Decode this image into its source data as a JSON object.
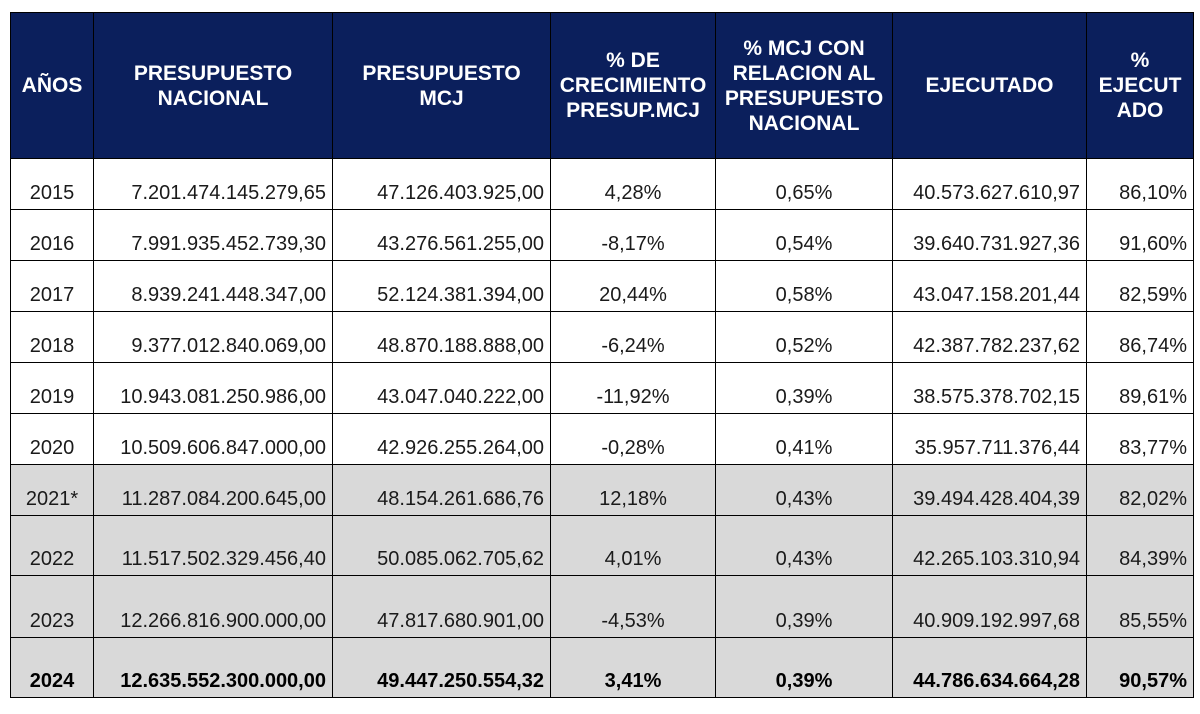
{
  "table": {
    "headers": [
      "AÑOS",
      "PRESUPUESTO\nNACIONAL",
      "PRESUPUESTO\nMCJ",
      "% DE\nCRECIMIENTO\nPRESUP.MCJ",
      "%   MCJ CON\nRELACION AL\nPRESUPUESTO\nNACIONAL",
      "EJECUTADO",
      "%\nEJECUT\nADO"
    ],
    "rows": [
      {
        "year": "2015",
        "nacional": "7.201.474.145.279,65",
        "mcj": "47.126.403.925,00",
        "crecimiento": "4,28%",
        "relacion": "0,65%",
        "ejecutado": "40.573.627.610,97",
        "pct_ejecutado": "86,10%",
        "highlight": "white",
        "bold": false
      },
      {
        "year": "2016",
        "nacional": "7.991.935.452.739,30",
        "mcj": "43.276.561.255,00",
        "crecimiento": "-8,17%",
        "relacion": "0,54%",
        "ejecutado": "39.640.731.927,36",
        "pct_ejecutado": "91,60%",
        "highlight": "white",
        "bold": false
      },
      {
        "year": "2017",
        "nacional": "8.939.241.448.347,00",
        "mcj": "52.124.381.394,00",
        "crecimiento": "20,44%",
        "relacion": "0,58%",
        "ejecutado": "43.047.158.201,44",
        "pct_ejecutado": "82,59%",
        "highlight": "white",
        "bold": false
      },
      {
        "year": "2018",
        "nacional": "9.377.012.840.069,00",
        "mcj": "48.870.188.888,00",
        "crecimiento": "-6,24%",
        "relacion": "0,52%",
        "ejecutado": "42.387.782.237,62",
        "pct_ejecutado": "86,74%",
        "highlight": "white",
        "bold": false
      },
      {
        "year": "2019",
        "nacional": "10.943.081.250.986,00",
        "mcj": "43.047.040.222,00",
        "crecimiento": "-11,92%",
        "relacion": "0,39%",
        "ejecutado": "38.575.378.702,15",
        "pct_ejecutado": "89,61%",
        "highlight": "white",
        "bold": false
      },
      {
        "year": "2020",
        "nacional": "10.509.606.847.000,00",
        "mcj": "42.926.255.264,00",
        "crecimiento": "-0,28%",
        "relacion": "0,41%",
        "ejecutado": "35.957.711.376,44",
        "pct_ejecutado": "83,77%",
        "highlight": "white",
        "bold": false
      },
      {
        "year": "2021*",
        "nacional": "11.287.084.200.645,00",
        "mcj": "48.154.261.686,76",
        "crecimiento": "12,18%",
        "relacion": "0,43%",
        "ejecutado": "39.494.428.404,39",
        "pct_ejecutado": "82,02%",
        "highlight": "grey",
        "bold": false
      },
      {
        "year": "2022",
        "nacional": "11.517.502.329.456,40",
        "mcj": "50.085.062.705,62",
        "crecimiento": "4,01%",
        "relacion": "0,43%",
        "ejecutado": "42.265.103.310,94",
        "pct_ejecutado": "84,39%",
        "highlight": "grey",
        "bold": false
      },
      {
        "year": "2023",
        "nacional": "12.266.816.900.000,00",
        "mcj": "47.817.680.901,00",
        "crecimiento": "-4,53%",
        "relacion": "0,39%",
        "ejecutado": "40.909.192.997,68",
        "pct_ejecutado": "85,55%",
        "highlight": "grey",
        "bold": false
      },
      {
        "year": "2024",
        "nacional": "12.635.552.300.000,00",
        "mcj": "49.447.250.554,32",
        "crecimiento": "3,41%",
        "relacion": "0,39%",
        "ejecutado": "44.786.634.664,28",
        "pct_ejecutado": "90,57%",
        "highlight": "grey",
        "bold": true
      }
    ]
  },
  "colors": {
    "header_bg": "#0b1f5c",
    "header_text": "#ffffff",
    "grey_row_bg": "#d9d9d9",
    "border": "#000000"
  }
}
